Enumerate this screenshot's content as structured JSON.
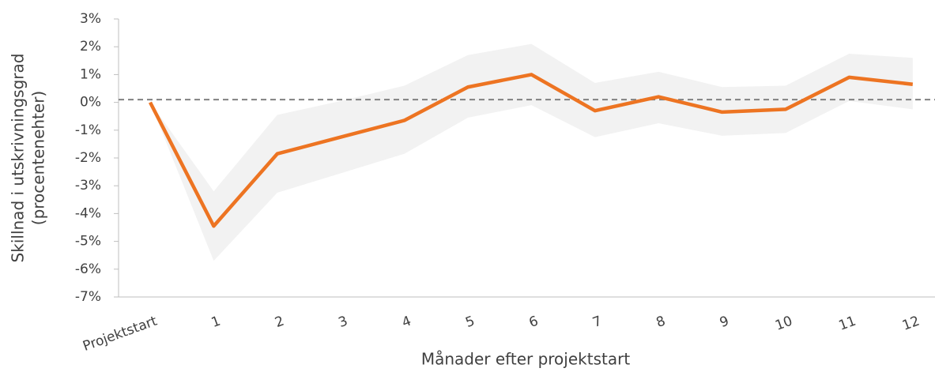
{
  "chart_data": {
    "type": "line",
    "categories": [
      "Projektstart",
      "1",
      "2",
      "3",
      "4",
      "5",
      "6",
      "7",
      "8",
      "9",
      "10",
      "11",
      "12"
    ],
    "series": [
      {
        "color": "#ed7422",
        "values": [
          0,
          -4.45,
          -1.85,
          -1.25,
          -0.65,
          0.55,
          1.0,
          -0.3,
          0.2,
          -0.35,
          -0.25,
          0.9,
          0.65
        ]
      }
    ],
    "band": {
      "color": "#f2f2f2",
      "upper": [
        0,
        -3.2,
        -0.45,
        0.05,
        0.6,
        1.7,
        2.1,
        0.7,
        1.1,
        0.55,
        0.6,
        1.75,
        1.6
      ],
      "lower": [
        0,
        -5.7,
        -3.25,
        -2.55,
        -1.85,
        -0.55,
        -0.1,
        -1.25,
        -0.75,
        -1.2,
        -1.1,
        0.05,
        -0.25
      ]
    },
    "reference_line": 0.1,
    "ylim": [
      -7,
      3
    ],
    "yticks": [
      {
        "value": -7,
        "label": "-7%"
      },
      {
        "value": -6,
        "label": "-6%"
      },
      {
        "value": -5,
        "label": "-5%"
      },
      {
        "value": -4,
        "label": "-4%"
      },
      {
        "value": -3,
        "label": "-3%"
      },
      {
        "value": -2,
        "label": "-2%"
      },
      {
        "value": -1,
        "label": "-1%"
      },
      {
        "value": 0,
        "label": "0%"
      },
      {
        "value": 1,
        "label": "1%"
      },
      {
        "value": 2,
        "label": "2%"
      },
      {
        "value": 3,
        "label": "3%"
      }
    ],
    "y_label": [
      "Skillnad i utskrivningsgrad",
      "(procentenehter)"
    ],
    "x_label": "Månader efter projektstart"
  }
}
